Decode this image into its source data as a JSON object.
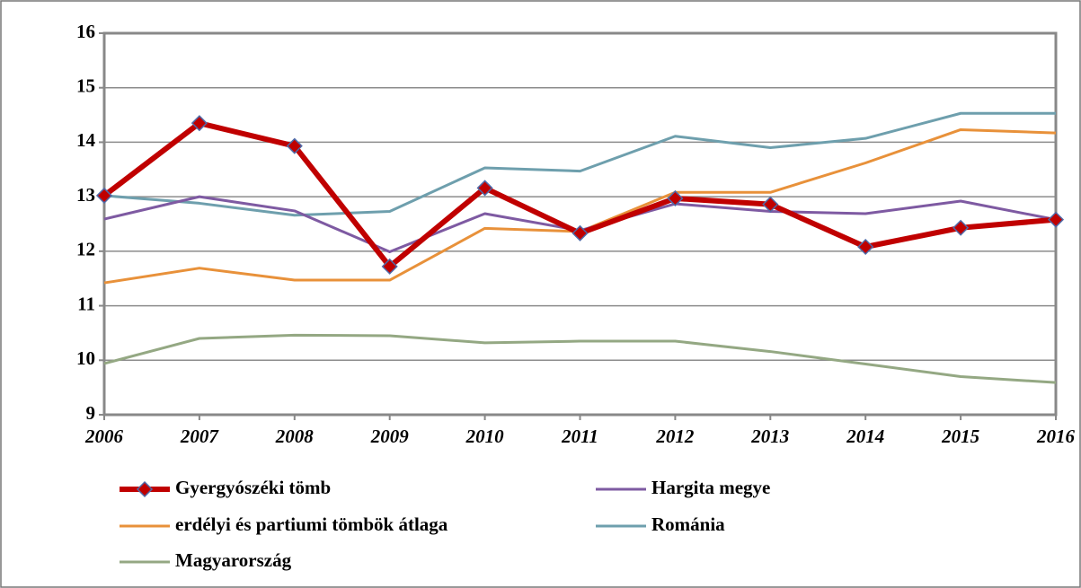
{
  "chart_data": {
    "type": "line",
    "x": [
      "2006",
      "2007",
      "2008",
      "2009",
      "2010",
      "2011",
      "2012",
      "2013",
      "2014",
      "2015",
      "2016"
    ],
    "series": [
      {
        "name": "Gyergyószéki tömb",
        "color": "#c00000",
        "marker": "diamond",
        "values": [
          13.02,
          14.35,
          13.93,
          11.72,
          13.16,
          12.33,
          12.97,
          12.86,
          12.08,
          12.43,
          12.58
        ]
      },
      {
        "name": "Hargita megye",
        "color": "#7e5aa2",
        "values": [
          12.59,
          13.0,
          12.74,
          11.99,
          12.69,
          12.38,
          12.87,
          12.73,
          12.69,
          12.92,
          12.58
        ]
      },
      {
        "name": "erdélyi és partiumi tömbök átlaga",
        "color": "#e8913a",
        "values": [
          11.42,
          11.69,
          11.47,
          11.47,
          12.42,
          12.36,
          13.08,
          13.08,
          13.62,
          14.23,
          14.17
        ]
      },
      {
        "name": "Románia",
        "color": "#6e9fad",
        "values": [
          13.02,
          12.88,
          12.66,
          12.73,
          13.53,
          13.47,
          14.11,
          13.9,
          14.07,
          14.53,
          14.53
        ]
      },
      {
        "name": "Magyarország",
        "color": "#94a883",
        "values": [
          9.94,
          10.4,
          10.46,
          10.45,
          10.32,
          10.35,
          10.35,
          10.16,
          9.93,
          9.7,
          9.59
        ]
      }
    ],
    "ylim": [
      9,
      16
    ],
    "yticks": [
      9,
      10,
      11,
      12,
      13,
      14,
      15,
      16
    ],
    "grid": true,
    "legend": "bottom"
  }
}
